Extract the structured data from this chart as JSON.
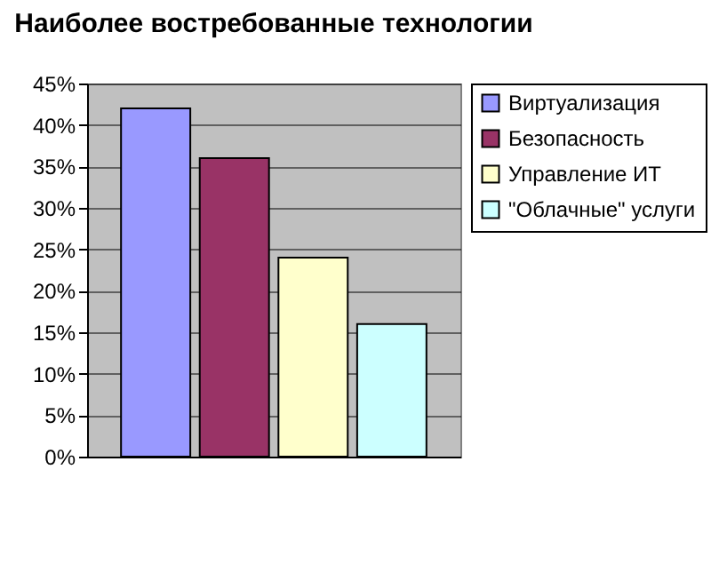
{
  "chart_data": {
    "type": "bar",
    "title": "Наиболее востребованные технологии",
    "categories": [
      null
    ],
    "series": [
      {
        "name": "Виртуализация",
        "color": "#9999ff",
        "values": [
          42
        ]
      },
      {
        "name": "Безопасность",
        "color": "#993366",
        "values": [
          36
        ]
      },
      {
        "name": "Управление ИТ",
        "color": "#ffffcc",
        "values": [
          24
        ]
      },
      {
        "name": "\"Облачные\" услуги",
        "color": "#ccffff",
        "values": [
          16
        ]
      }
    ],
    "ylim": [
      0,
      45
    ],
    "yticks": [
      {
        "value": 0,
        "label": "0%"
      },
      {
        "value": 5,
        "label": "5%"
      },
      {
        "value": 10,
        "label": "10%"
      },
      {
        "value": 15,
        "label": "15%"
      },
      {
        "value": 20,
        "label": "20%"
      },
      {
        "value": 25,
        "label": "25%"
      },
      {
        "value": 30,
        "label": "30%"
      },
      {
        "value": 35,
        "label": "35%"
      },
      {
        "value": 40,
        "label": "40%"
      },
      {
        "value": 45,
        "label": "45%"
      }
    ],
    "grid": "y",
    "legend": "right"
  }
}
